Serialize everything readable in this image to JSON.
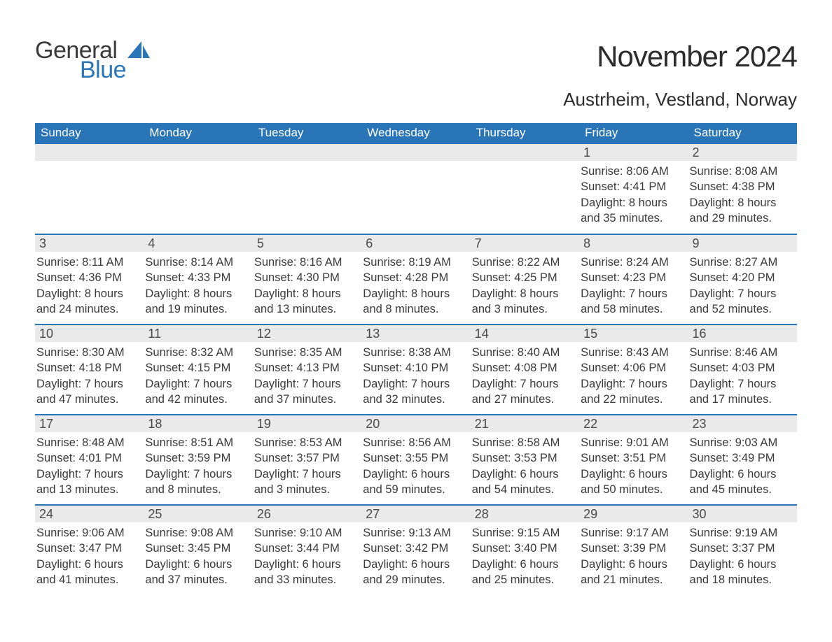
{
  "brand": {
    "text1": "General",
    "text2": "Blue",
    "text1_color": "#3a3a3a",
    "text2_color": "#2a74b8",
    "icon_color": "#2a74b8"
  },
  "title": "November 2024",
  "location": "Austrheim, Vestland, Norway",
  "colors": {
    "header_bg": "#2a74b8",
    "header_text": "#ffffff",
    "daynum_bg": "#eaeaea",
    "daynum_text": "#4a4a4a",
    "body_text": "#3a3a3a",
    "week_border": "#2a74b8",
    "page_bg": "#ffffff"
  },
  "typography": {
    "title_fontsize": 42,
    "location_fontsize": 26,
    "weekday_fontsize": 17,
    "daynum_fontsize": 18,
    "detail_fontsize": 16.5,
    "logo_fontsize": 34
  },
  "layout": {
    "columns": 7,
    "rows": 5,
    "row_border_width": 2
  },
  "weekdays": [
    "Sunday",
    "Monday",
    "Tuesday",
    "Wednesday",
    "Thursday",
    "Friday",
    "Saturday"
  ],
  "weeks": [
    [
      null,
      null,
      null,
      null,
      null,
      {
        "n": "1",
        "sr": "Sunrise: 8:06 AM",
        "ss": "Sunset: 4:41 PM",
        "d1": "Daylight: 8 hours",
        "d2": "and 35 minutes."
      },
      {
        "n": "2",
        "sr": "Sunrise: 8:08 AM",
        "ss": "Sunset: 4:38 PM",
        "d1": "Daylight: 8 hours",
        "d2": "and 29 minutes."
      }
    ],
    [
      {
        "n": "3",
        "sr": "Sunrise: 8:11 AM",
        "ss": "Sunset: 4:36 PM",
        "d1": "Daylight: 8 hours",
        "d2": "and 24 minutes."
      },
      {
        "n": "4",
        "sr": "Sunrise: 8:14 AM",
        "ss": "Sunset: 4:33 PM",
        "d1": "Daylight: 8 hours",
        "d2": "and 19 minutes."
      },
      {
        "n": "5",
        "sr": "Sunrise: 8:16 AM",
        "ss": "Sunset: 4:30 PM",
        "d1": "Daylight: 8 hours",
        "d2": "and 13 minutes."
      },
      {
        "n": "6",
        "sr": "Sunrise: 8:19 AM",
        "ss": "Sunset: 4:28 PM",
        "d1": "Daylight: 8 hours",
        "d2": "and 8 minutes."
      },
      {
        "n": "7",
        "sr": "Sunrise: 8:22 AM",
        "ss": "Sunset: 4:25 PM",
        "d1": "Daylight: 8 hours",
        "d2": "and 3 minutes."
      },
      {
        "n": "8",
        "sr": "Sunrise: 8:24 AM",
        "ss": "Sunset: 4:23 PM",
        "d1": "Daylight: 7 hours",
        "d2": "and 58 minutes."
      },
      {
        "n": "9",
        "sr": "Sunrise: 8:27 AM",
        "ss": "Sunset: 4:20 PM",
        "d1": "Daylight: 7 hours",
        "d2": "and 52 minutes."
      }
    ],
    [
      {
        "n": "10",
        "sr": "Sunrise: 8:30 AM",
        "ss": "Sunset: 4:18 PM",
        "d1": "Daylight: 7 hours",
        "d2": "and 47 minutes."
      },
      {
        "n": "11",
        "sr": "Sunrise: 8:32 AM",
        "ss": "Sunset: 4:15 PM",
        "d1": "Daylight: 7 hours",
        "d2": "and 42 minutes."
      },
      {
        "n": "12",
        "sr": "Sunrise: 8:35 AM",
        "ss": "Sunset: 4:13 PM",
        "d1": "Daylight: 7 hours",
        "d2": "and 37 minutes."
      },
      {
        "n": "13",
        "sr": "Sunrise: 8:38 AM",
        "ss": "Sunset: 4:10 PM",
        "d1": "Daylight: 7 hours",
        "d2": "and 32 minutes."
      },
      {
        "n": "14",
        "sr": "Sunrise: 8:40 AM",
        "ss": "Sunset: 4:08 PM",
        "d1": "Daylight: 7 hours",
        "d2": "and 27 minutes."
      },
      {
        "n": "15",
        "sr": "Sunrise: 8:43 AM",
        "ss": "Sunset: 4:06 PM",
        "d1": "Daylight: 7 hours",
        "d2": "and 22 minutes."
      },
      {
        "n": "16",
        "sr": "Sunrise: 8:46 AM",
        "ss": "Sunset: 4:03 PM",
        "d1": "Daylight: 7 hours",
        "d2": "and 17 minutes."
      }
    ],
    [
      {
        "n": "17",
        "sr": "Sunrise: 8:48 AM",
        "ss": "Sunset: 4:01 PM",
        "d1": "Daylight: 7 hours",
        "d2": "and 13 minutes."
      },
      {
        "n": "18",
        "sr": "Sunrise: 8:51 AM",
        "ss": "Sunset: 3:59 PM",
        "d1": "Daylight: 7 hours",
        "d2": "and 8 minutes."
      },
      {
        "n": "19",
        "sr": "Sunrise: 8:53 AM",
        "ss": "Sunset: 3:57 PM",
        "d1": "Daylight: 7 hours",
        "d2": "and 3 minutes."
      },
      {
        "n": "20",
        "sr": "Sunrise: 8:56 AM",
        "ss": "Sunset: 3:55 PM",
        "d1": "Daylight: 6 hours",
        "d2": "and 59 minutes."
      },
      {
        "n": "21",
        "sr": "Sunrise: 8:58 AM",
        "ss": "Sunset: 3:53 PM",
        "d1": "Daylight: 6 hours",
        "d2": "and 54 minutes."
      },
      {
        "n": "22",
        "sr": "Sunrise: 9:01 AM",
        "ss": "Sunset: 3:51 PM",
        "d1": "Daylight: 6 hours",
        "d2": "and 50 minutes."
      },
      {
        "n": "23",
        "sr": "Sunrise: 9:03 AM",
        "ss": "Sunset: 3:49 PM",
        "d1": "Daylight: 6 hours",
        "d2": "and 45 minutes."
      }
    ],
    [
      {
        "n": "24",
        "sr": "Sunrise: 9:06 AM",
        "ss": "Sunset: 3:47 PM",
        "d1": "Daylight: 6 hours",
        "d2": "and 41 minutes."
      },
      {
        "n": "25",
        "sr": "Sunrise: 9:08 AM",
        "ss": "Sunset: 3:45 PM",
        "d1": "Daylight: 6 hours",
        "d2": "and 37 minutes."
      },
      {
        "n": "26",
        "sr": "Sunrise: 9:10 AM",
        "ss": "Sunset: 3:44 PM",
        "d1": "Daylight: 6 hours",
        "d2": "and 33 minutes."
      },
      {
        "n": "27",
        "sr": "Sunrise: 9:13 AM",
        "ss": "Sunset: 3:42 PM",
        "d1": "Daylight: 6 hours",
        "d2": "and 29 minutes."
      },
      {
        "n": "28",
        "sr": "Sunrise: 9:15 AM",
        "ss": "Sunset: 3:40 PM",
        "d1": "Daylight: 6 hours",
        "d2": "and 25 minutes."
      },
      {
        "n": "29",
        "sr": "Sunrise: 9:17 AM",
        "ss": "Sunset: 3:39 PM",
        "d1": "Daylight: 6 hours",
        "d2": "and 21 minutes."
      },
      {
        "n": "30",
        "sr": "Sunrise: 9:19 AM",
        "ss": "Sunset: 3:37 PM",
        "d1": "Daylight: 6 hours",
        "d2": "and 18 minutes."
      }
    ]
  ]
}
